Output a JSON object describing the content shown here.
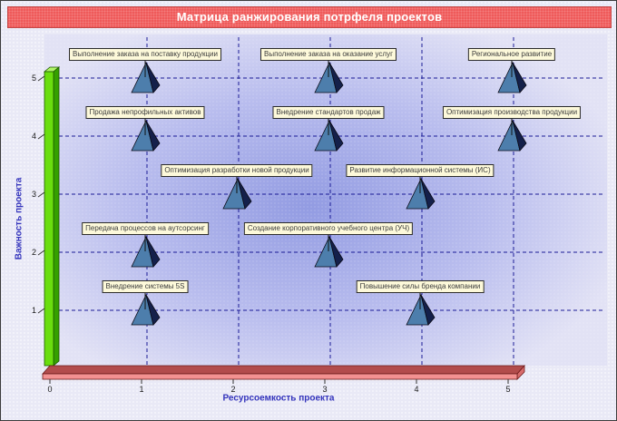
{
  "title_bar": {
    "text": "Матрица ранжирования потрфеля проектов"
  },
  "colors": {
    "page_bg": "#e9e9f6",
    "frame_border": "#3c3c3c",
    "title_bg": "#ef5a5a",
    "title_border": "#c24848",
    "title_text": "#ffffff",
    "plot_center": "#929be2",
    "plot_mid": "#b9bdee",
    "plot_edge": "#e2e2f5",
    "gridline": "#1c1c96",
    "axis_title": "#3434bc",
    "tick_text": "#1a1a1a",
    "tick_mark": "#333333",
    "label_bg": "#fdf9da",
    "label_border": "#2b2b2b",
    "label_text": "#3c3c3c",
    "pyramid_light": "#4d7eac",
    "pyramid_dark": "#14204a",
    "pyramid_outline": "#0a0a16",
    "wall_front": "#6ade0e",
    "wall_side": "#35a000",
    "wall_top": "#b0f468",
    "wall_outline": "#1c5500",
    "floor_top": "#b24c4c",
    "floor_front": "#f39191",
    "floor_side": "#d86b6b",
    "floor_outline": "#6b1a1a",
    "leader_line": "#111111"
  },
  "chart_data": {
    "type": "scatter",
    "title": "Матрица ранжирования потрфеля проектов",
    "xlabel": "Ресурсоемкость проекта",
    "ylabel": "Важность проекта",
    "xlim": [
      0,
      5
    ],
    "ylim": [
      0,
      5
    ],
    "x_ticks": [
      0,
      1,
      2,
      3,
      4,
      5
    ],
    "y_ticks": [
      1,
      2,
      3,
      4,
      5
    ],
    "grid": "dashed",
    "legend": "none",
    "marker": "pyramid-3d",
    "points": [
      {
        "x": 1,
        "y": 5,
        "label": "Выполнение заказа на поставку продукции"
      },
      {
        "x": 3,
        "y": 5,
        "label": "Выполнение заказа на оказание услуг"
      },
      {
        "x": 5,
        "y": 5,
        "label": "Региональное развитие"
      },
      {
        "x": 1,
        "y": 4,
        "label": "Продажа непрофильных активов"
      },
      {
        "x": 3,
        "y": 4,
        "label": "Внедрение стандартов продаж"
      },
      {
        "x": 5,
        "y": 4,
        "label": "Оптимизация производства продукции"
      },
      {
        "x": 2,
        "y": 3,
        "label": "Оптимизация разработки новой продукции"
      },
      {
        "x": 4,
        "y": 3,
        "label": "Развитие информационной системы (ИС)"
      },
      {
        "x": 1,
        "y": 2,
        "label": "Передача процессов на аутсорсинг"
      },
      {
        "x": 3,
        "y": 2,
        "label": "Создание корпоративного учебного центра (УЧ)"
      },
      {
        "x": 1,
        "y": 1,
        "label": "Внедрение системы 5S"
      },
      {
        "x": 4,
        "y": 1,
        "label": "Повышение силы бренда компании"
      }
    ]
  }
}
